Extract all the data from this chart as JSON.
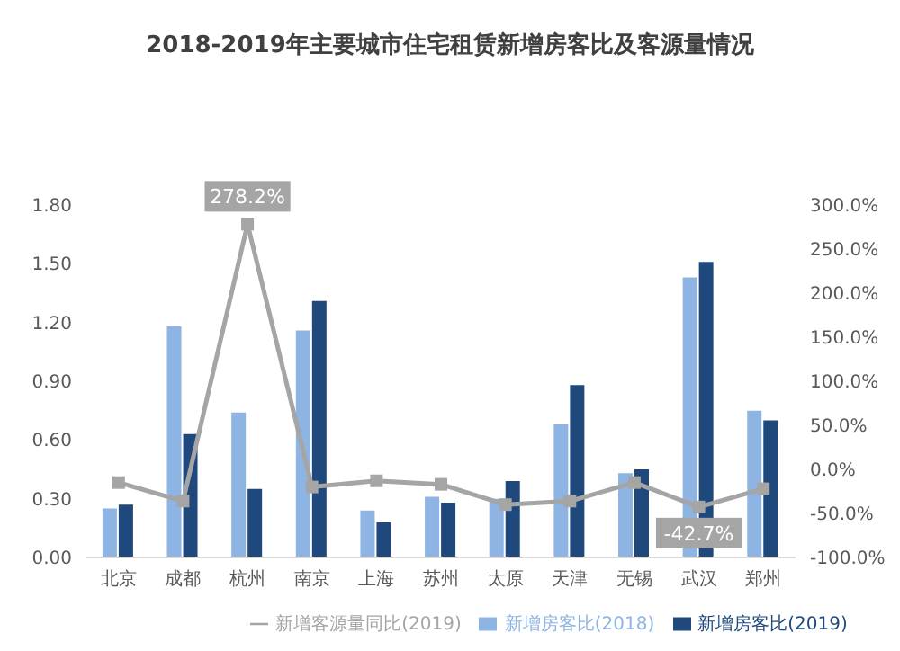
{
  "chart_data": {
    "type": "bar",
    "title": "2018-2019年主要城市住宅租赁新增房客比及客源量情况",
    "categories": [
      "北京",
      "成都",
      "杭州",
      "南京",
      "上海",
      "苏州",
      "太原",
      "天津",
      "无锡",
      "武汉",
      "郑州"
    ],
    "series": [
      {
        "name": "新增房客比(2018)",
        "color": "#8eb4e3",
        "values": [
          0.25,
          1.18,
          0.74,
          1.16,
          0.24,
          0.31,
          0.3,
          0.68,
          0.43,
          1.43,
          0.75
        ]
      },
      {
        "name": "新增房客比(2019)",
        "color": "#1f497d",
        "values": [
          0.27,
          0.63,
          0.35,
          1.31,
          0.18,
          0.28,
          0.39,
          0.88,
          0.45,
          1.51,
          0.7
        ]
      },
      {
        "name": "新增客源量同比(2019)",
        "type": "line",
        "axis": "y2",
        "color": "#a5a5a5",
        "values": [
          -15,
          -36,
          278.2,
          -20,
          -13,
          -17,
          -40,
          -36,
          -15,
          -42.7,
          -22
        ],
        "value_labels": [
          null,
          null,
          "278.2%",
          null,
          null,
          null,
          null,
          null,
          null,
          "-42.7%",
          null
        ]
      }
    ],
    "ylim": [
      0,
      1.8
    ],
    "yticks": [
      {
        "value": 0,
        "label": "0.00"
      },
      {
        "value": 0.3,
        "label": "0.30"
      },
      {
        "value": 0.6,
        "label": "0.60"
      },
      {
        "value": 0.9,
        "label": "0.90"
      },
      {
        "value": 1.2,
        "label": "1.20"
      },
      {
        "value": 1.5,
        "label": "1.50"
      },
      {
        "value": 1.8,
        "label": "1.80"
      }
    ],
    "y2lim": [
      -100,
      300
    ],
    "y2ticks": [
      {
        "value": -100,
        "label": "-100.0%"
      },
      {
        "value": -50,
        "label": "-50.0%"
      },
      {
        "value": 0,
        "label": "0.0%"
      },
      {
        "value": 50,
        "label": "50.0%"
      },
      {
        "value": 100,
        "label": "100.0%"
      },
      {
        "value": 150,
        "label": "150.0%"
      },
      {
        "value": 200,
        "label": "200.0%"
      },
      {
        "value": 250,
        "label": "250.0%"
      },
      {
        "value": 300,
        "label": "300.0%"
      }
    ],
    "grid": false,
    "legend": "bottom",
    "marker": "square"
  }
}
